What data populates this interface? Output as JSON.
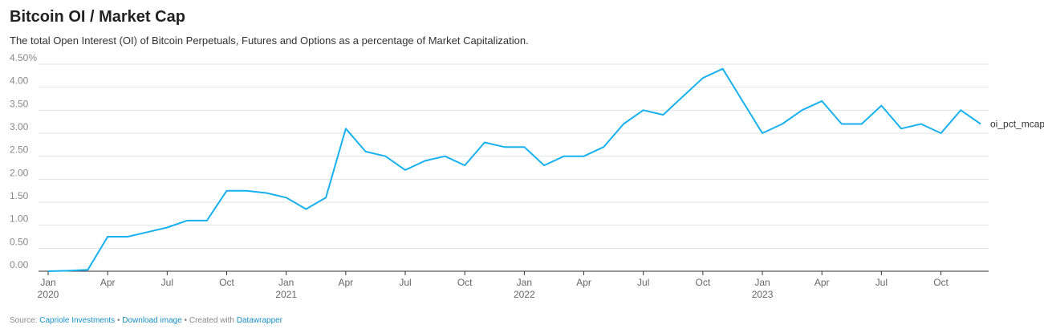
{
  "chart_data": {
    "type": "line",
    "title": "Bitcoin OI / Market Cap",
    "subtitle": "The total Open Interest (OI) of Bitcoin Perpetuals, Futures and Options as a percentage of Market Capitalization.",
    "x": [
      "2020-01",
      "2020-02",
      "2020-03",
      "2020-04",
      "2020-05",
      "2020-06",
      "2020-07",
      "2020-08",
      "2020-09",
      "2020-10",
      "2020-11",
      "2020-12",
      "2021-01",
      "2021-02",
      "2021-03",
      "2021-04",
      "2021-05",
      "2021-06",
      "2021-07",
      "2021-08",
      "2021-09",
      "2021-10",
      "2021-11",
      "2021-12",
      "2022-01",
      "2022-02",
      "2022-03",
      "2022-04",
      "2022-05",
      "2022-06",
      "2022-07",
      "2022-08",
      "2022-09",
      "2022-10",
      "2022-11",
      "2022-12",
      "2023-01",
      "2023-02",
      "2023-03",
      "2023-04",
      "2023-05",
      "2023-06",
      "2023-07",
      "2023-08",
      "2023-09",
      "2023-10",
      "2023-11",
      "2023-12"
    ],
    "series": [
      {
        "name": "oi_pct_mcap",
        "color": "#18b1ee",
        "values": [
          0.0,
          0.01,
          0.03,
          0.75,
          0.75,
          0.85,
          0.95,
          1.1,
          1.1,
          1.75,
          1.75,
          1.7,
          1.6,
          1.35,
          1.6,
          3.1,
          2.6,
          2.5,
          2.2,
          2.4,
          2.5,
          2.3,
          2.8,
          2.7,
          2.7,
          2.3,
          2.5,
          2.5,
          2.7,
          3.2,
          3.5,
          3.4,
          3.8,
          4.2,
          4.4,
          3.7,
          3.0,
          3.2,
          3.5,
          3.7,
          3.2,
          3.2,
          3.6,
          3.1,
          3.2,
          3.0,
          3.5,
          3.2
        ]
      }
    ],
    "xlim": [
      "2020-01",
      "2023-12"
    ],
    "xticks": [
      {
        "value": "2020-01",
        "label": "Jan",
        "year": "2020"
      },
      {
        "value": "2020-04",
        "label": "Apr"
      },
      {
        "value": "2020-07",
        "label": "Jul"
      },
      {
        "value": "2020-10",
        "label": "Oct"
      },
      {
        "value": "2021-01",
        "label": "Jan",
        "year": "2021"
      },
      {
        "value": "2021-04",
        "label": "Apr"
      },
      {
        "value": "2021-07",
        "label": "Jul"
      },
      {
        "value": "2021-10",
        "label": "Oct"
      },
      {
        "value": "2022-01",
        "label": "Jan",
        "year": "2022"
      },
      {
        "value": "2022-04",
        "label": "Apr"
      },
      {
        "value": "2022-07",
        "label": "Jul"
      },
      {
        "value": "2022-10",
        "label": "Oct"
      },
      {
        "value": "2023-01",
        "label": "Jan",
        "year": "2023"
      },
      {
        "value": "2023-04",
        "label": "Apr"
      },
      {
        "value": "2023-07",
        "label": "Jul"
      },
      {
        "value": "2023-10",
        "label": "Oct"
      }
    ],
    "ylim": [
      0,
      4.5
    ],
    "yticks": [
      {
        "value": 0,
        "label": "0.00"
      },
      {
        "value": 0.5,
        "label": "0.50"
      },
      {
        "value": 1,
        "label": "1.00"
      },
      {
        "value": 1.5,
        "label": "1.50"
      },
      {
        "value": 2,
        "label": "2.00"
      },
      {
        "value": 2.5,
        "label": "2.50"
      },
      {
        "value": 3,
        "label": "3.00"
      },
      {
        "value": 3.5,
        "label": "3.50"
      },
      {
        "value": 4,
        "label": "4.00"
      },
      {
        "value": 4.5,
        "label": "4.50%"
      }
    ],
    "grid": true,
    "footer": {
      "source_label": "Source:",
      "source": "Capriole Investments",
      "download": "Download image",
      "created": "Created with",
      "tool": "Datawrapper"
    }
  }
}
